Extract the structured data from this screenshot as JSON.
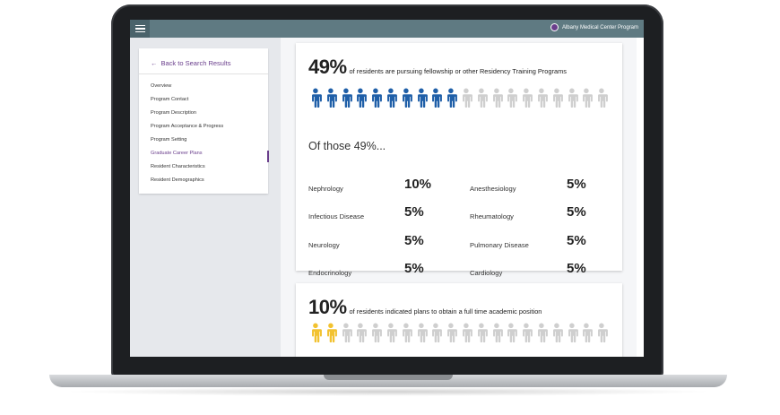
{
  "topbar": {
    "menu_icon": "hamburger-icon",
    "program_name": "Albany Medical Center Program",
    "logo_icon": "program-logo-icon"
  },
  "sidebar": {
    "back_label": "Back to Search Results",
    "back_icon": "arrow-left-icon",
    "items": [
      {
        "label": "Overview"
      },
      {
        "label": "Program Contact"
      },
      {
        "label": "Program Description"
      },
      {
        "label": "Program Acceptance & Progress"
      },
      {
        "label": "Program Setting"
      },
      {
        "label": "Graduate Career Plans",
        "active": true
      },
      {
        "label": "Resident Characteristics"
      },
      {
        "label": "Resident Demographics"
      }
    ]
  },
  "fellowship": {
    "percent": "49%",
    "text": "of residents are pursuing fellowship or other Residency Training Programs",
    "people_total": 20,
    "people_filled": 10,
    "filled_color": "#1f5fa8",
    "empty_color": "#cfcfcf",
    "subheading": "Of those 49%...",
    "specialties": [
      {
        "name": "Nephrology",
        "value": "10%"
      },
      {
        "name": "Anesthesiology",
        "value": "5%"
      },
      {
        "name": "Infectious Disease",
        "value": "5%"
      },
      {
        "name": "Rheumatology",
        "value": "5%"
      },
      {
        "name": "Neurology",
        "value": "5%"
      },
      {
        "name": "Pulmonary Disease",
        "value": "5%"
      },
      {
        "name": "Endocrinology",
        "value": "5%"
      },
      {
        "name": "Cardiology",
        "value": "5%"
      }
    ]
  },
  "academic": {
    "percent": "10%",
    "text": "of residents indicated plans to obtain a full time academic position",
    "people_total": 20,
    "people_filled": 2,
    "filled_color": "#f2c230",
    "empty_color": "#cfcfcf"
  },
  "colors": {
    "topbar": "#5f7a82",
    "accent": "#6a3e8c"
  }
}
